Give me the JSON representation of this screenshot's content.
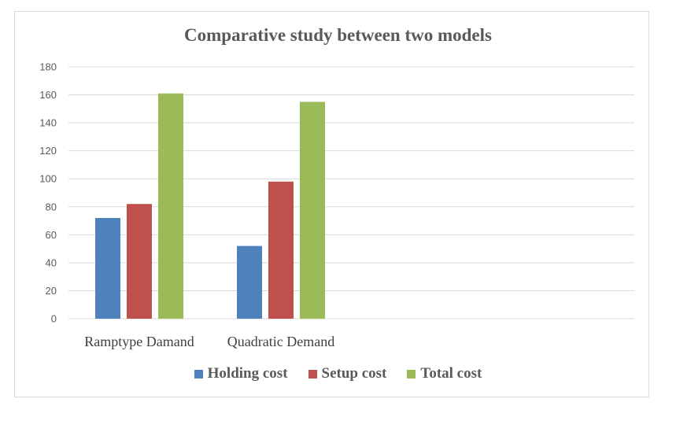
{
  "chart_data": {
    "type": "bar",
    "title": "Comparative study between two models",
    "categories": [
      "Ramptype Damand",
      "Quadratic Demand"
    ],
    "series": [
      {
        "name": "Holding cost",
        "values": [
          72,
          52
        ],
        "color": "#4f81bd"
      },
      {
        "name": "Setup cost",
        "values": [
          82,
          98
        ],
        "color": "#c0504d"
      },
      {
        "name": "Total cost",
        "values": [
          161,
          155
        ],
        "color": "#9bbb59"
      }
    ],
    "ylim": [
      0,
      180
    ],
    "yticks": [
      "0",
      "20",
      "40",
      "60",
      "80",
      "100",
      "120",
      "140",
      "160",
      "180"
    ],
    "grid": true,
    "legend_position": "bottom",
    "xlabel": "",
    "ylabel": ""
  }
}
